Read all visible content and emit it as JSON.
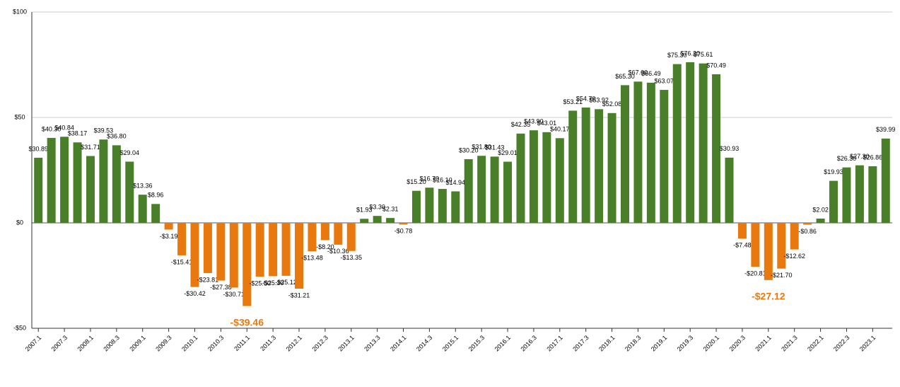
{
  "chart_data": {
    "type": "bar",
    "categories": [
      "2007.1",
      null,
      "2007.3",
      null,
      "2008.1",
      null,
      "2008.3",
      null,
      "2009.1",
      null,
      "2009.3",
      null,
      "2010.1",
      null,
      "2010.3",
      null,
      "2011.1",
      null,
      "2011.3",
      null,
      "2012.1",
      null,
      "2012.3",
      null,
      "2013.1",
      null,
      "2013.3",
      null,
      "2014.1",
      null,
      "2014.3",
      null,
      "2015.1",
      null,
      "2015.3",
      null,
      "2016.1",
      null,
      "2016.3",
      null,
      "2017.1",
      null,
      "2017.3",
      null,
      "2018.1",
      null,
      "2018.3",
      null,
      "2019.1",
      null,
      "2019.3",
      null,
      "2020.1",
      null,
      "2020.3",
      null,
      "2021.1",
      null,
      "2021.3",
      null,
      "2022.1",
      null,
      "2022.3",
      null,
      "2023.1",
      null
    ],
    "values": [
      30.89,
      40.3,
      40.84,
      38.17,
      31.71,
      39.53,
      36.8,
      29.04,
      13.36,
      8.96,
      -3.19,
      -15.41,
      -30.42,
      -23.81,
      -27.38,
      -30.71,
      -39.46,
      -25.5,
      -25.3,
      -25.12,
      -31.21,
      -13.48,
      -8.2,
      -10.36,
      -13.35,
      1.93,
      3.3,
      2.31,
      -0.78,
      15.2,
      16.7,
      16.1,
      14.94,
      30.2,
      31.8,
      31.43,
      29.01,
      42.35,
      43.9,
      43.01,
      40.17,
      53.21,
      54.7,
      53.92,
      52.08,
      65.3,
      67.0,
      66.49,
      63.07,
      75.3,
      76.2,
      75.61,
      70.49,
      30.93,
      -7.48,
      -20.81,
      -27.12,
      -21.7,
      -12.62,
      -0.86,
      2.02,
      19.93,
      26.3,
      27.3,
      26.86,
      39.99
    ],
    "value_labels": [
      "$30.89",
      "$40.30",
      "$40.84",
      "$38.17",
      "$31.71",
      "$39.53",
      "$36.80",
      "$29.04",
      "$13.36",
      "$8.96",
      "-$3.19",
      "-$15.41",
      "-$30.42",
      "-$23.81",
      "-$27.38",
      "-$30.71",
      "-$39.46",
      "-$25.50",
      "-$25.30",
      "-$25.12",
      "-$31.21",
      "-$13.48",
      "-$8.20",
      "-$10.36",
      "-$13.35",
      "$1.93",
      "$3.30",
      "$2.31",
      "-$0.78",
      "$15.20",
      "$16.70",
      "$16.10",
      "$14.94",
      "$30.20",
      "$31.80",
      "$31.43",
      "$29.01",
      "$42.35",
      "$43.90",
      "$43.01",
      "$40.17",
      "$53.21",
      "$54.70",
      "$53.92",
      "$52.08",
      "$65.30",
      "$67.00",
      "$66.49",
      "$63.07",
      "$75.30",
      "$76.20",
      "$75.61",
      "$70.49",
      "$30.93",
      "-$7.48",
      "-$20.81",
      "-$27.12",
      "-$21.70",
      "-$12.62",
      "-$0.86",
      "$2.02",
      "$19.93",
      "$26.30",
      "$27.30",
      "$26.86",
      "$39.99"
    ],
    "highlight": [
      16,
      56
    ],
    "color_positive": "#4a7f2a",
    "color_negative": "#e8790e",
    "ylim": [
      -50,
      100
    ],
    "yticks": [
      {
        "value": -50,
        "label": "-$50"
      },
      {
        "value": 0,
        "label": "$0"
      },
      {
        "value": 50,
        "label": "$50"
      },
      {
        "value": 100,
        "label": "$100"
      }
    ],
    "grid": true
  }
}
